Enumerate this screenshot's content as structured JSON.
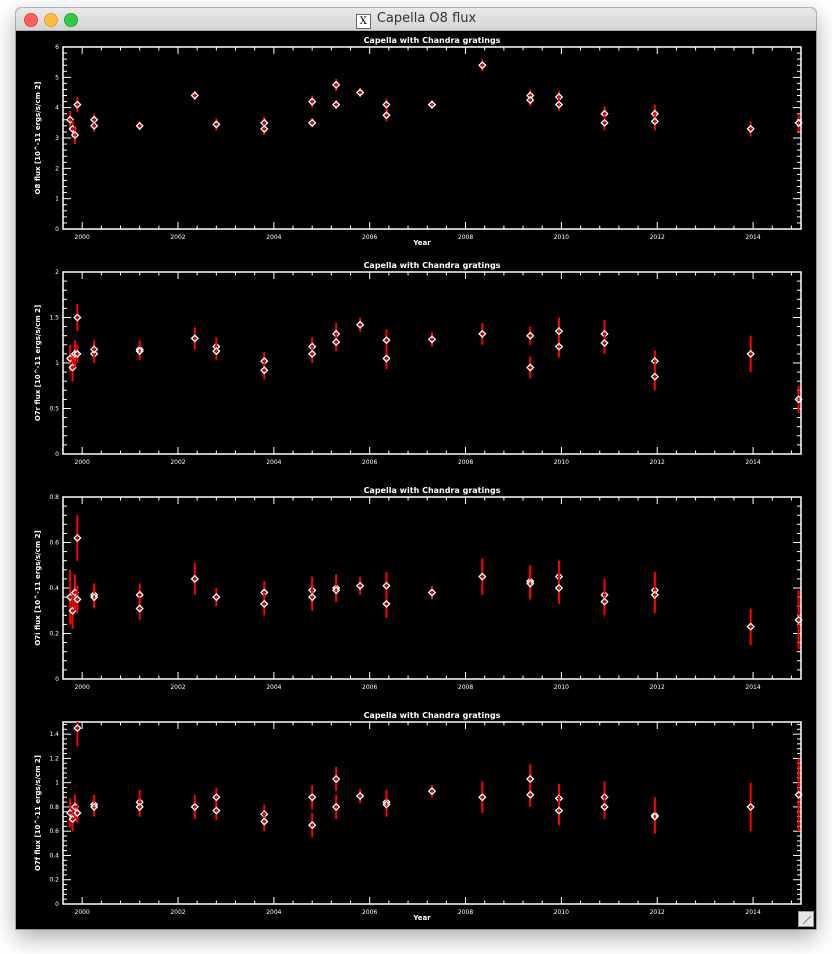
{
  "window": {
    "title": "Capella O8 flux",
    "icon": "x11-icon"
  },
  "colors": {
    "axes": "#ffffff",
    "errorbar": "#ff0000",
    "marker": "#ffffff",
    "background": "#000000"
  },
  "chart_data": [
    {
      "type": "scatter",
      "title": "Capella with Chandra gratings",
      "xlabel": "Year",
      "ylabel": "O8 flux [10^-11 ergs/s/cm 2]",
      "xlim": [
        1999.6,
        2015.0
      ],
      "ylim": [
        0,
        6
      ],
      "x_ticks": [
        2000,
        2002,
        2004,
        2006,
        2008,
        2010,
        2012,
        2014
      ],
      "x_tick_labels": [
        "2000",
        "2002",
        "2004",
        "2006",
        "2008",
        "2010",
        "2012",
        "2014"
      ],
      "y_ticks": [
        0,
        1,
        2,
        3,
        4,
        5,
        6
      ],
      "y_tick_labels": [
        "0",
        "1",
        "2",
        "3",
        "4",
        "5",
        "6"
      ],
      "points": [
        {
          "x": 1999.75,
          "y": 3.6,
          "err": 0.3
        },
        {
          "x": 1999.8,
          "y": 3.3,
          "err": 0.3
        },
        {
          "x": 1999.85,
          "y": 3.1,
          "err": 0.3
        },
        {
          "x": 1999.9,
          "y": 4.1,
          "err": 0.25
        },
        {
          "x": 2000.25,
          "y": 3.4,
          "err": 0.2
        },
        {
          "x": 2000.25,
          "y": 3.6,
          "err": 0.2
        },
        {
          "x": 2001.2,
          "y": 3.4,
          "err": 0.15
        },
        {
          "x": 2002.35,
          "y": 4.4,
          "err": 0.15
        },
        {
          "x": 2002.8,
          "y": 3.45,
          "err": 0.2
        },
        {
          "x": 2003.8,
          "y": 3.5,
          "err": 0.2
        },
        {
          "x": 2003.8,
          "y": 3.3,
          "err": 0.2
        },
        {
          "x": 2004.8,
          "y": 4.2,
          "err": 0.2
        },
        {
          "x": 2004.8,
          "y": 3.5,
          "err": 0.15
        },
        {
          "x": 2005.3,
          "y": 4.75,
          "err": 0.2
        },
        {
          "x": 2005.3,
          "y": 4.1,
          "err": 0.15
        },
        {
          "x": 2005.8,
          "y": 4.5,
          "err": 0.15
        },
        {
          "x": 2006.35,
          "y": 4.1,
          "err": 0.2
        },
        {
          "x": 2006.35,
          "y": 3.75,
          "err": 0.2
        },
        {
          "x": 2007.3,
          "y": 4.1,
          "err": 0.15
        },
        {
          "x": 2008.35,
          "y": 5.4,
          "err": 0.2
        },
        {
          "x": 2009.35,
          "y": 4.4,
          "err": 0.2
        },
        {
          "x": 2009.35,
          "y": 4.25,
          "err": 0.2
        },
        {
          "x": 2009.95,
          "y": 4.35,
          "err": 0.2
        },
        {
          "x": 2009.95,
          "y": 4.1,
          "err": 0.2
        },
        {
          "x": 2010.9,
          "y": 3.8,
          "err": 0.25
        },
        {
          "x": 2010.9,
          "y": 3.5,
          "err": 0.25
        },
        {
          "x": 2011.95,
          "y": 3.8,
          "err": 0.3
        },
        {
          "x": 2011.95,
          "y": 3.55,
          "err": 0.3
        },
        {
          "x": 2013.95,
          "y": 3.3,
          "err": 0.25
        },
        {
          "x": 2014.95,
          "y": 3.5,
          "err": 0.3
        }
      ]
    },
    {
      "type": "scatter",
      "title": "Capella with Chandra gratings",
      "xlabel": "",
      "ylabel": "O7r flux [10^-11 ergs/s/cm 2]",
      "xlim": [
        1999.6,
        2015.0
      ],
      "ylim": [
        0,
        2
      ],
      "x_ticks": [
        2000,
        2002,
        2004,
        2006,
        2008,
        2010,
        2012,
        2014
      ],
      "x_tick_labels": [
        "2000",
        "2002",
        "2004",
        "2006",
        "2008",
        "2010",
        "2012",
        "2014"
      ],
      "y_ticks": [
        0,
        0.5,
        1,
        1.5,
        2
      ],
      "y_tick_labels": [
        "0",
        "0.5",
        "1",
        "1.5",
        "2"
      ],
      "points": [
        {
          "x": 1999.75,
          "y": 1.05,
          "err": 0.15
        },
        {
          "x": 1999.8,
          "y": 0.95,
          "err": 0.15
        },
        {
          "x": 1999.85,
          "y": 1.1,
          "err": 0.15
        },
        {
          "x": 1999.9,
          "y": 1.5,
          "err": 0.15
        },
        {
          "x": 1999.9,
          "y": 1.1,
          "err": 0.1
        },
        {
          "x": 2000.25,
          "y": 1.1,
          "err": 0.1
        },
        {
          "x": 2000.25,
          "y": 1.15,
          "err": 0.1
        },
        {
          "x": 2001.2,
          "y": 1.15,
          "err": 0.1
        },
        {
          "x": 2001.2,
          "y": 1.13,
          "err": 0.1
        },
        {
          "x": 2002.35,
          "y": 1.27,
          "err": 0.12
        },
        {
          "x": 2002.8,
          "y": 1.18,
          "err": 0.1
        },
        {
          "x": 2002.8,
          "y": 1.13,
          "err": 0.1
        },
        {
          "x": 2003.8,
          "y": 1.02,
          "err": 0.1
        },
        {
          "x": 2003.8,
          "y": 0.92,
          "err": 0.1
        },
        {
          "x": 2004.8,
          "y": 1.18,
          "err": 0.1
        },
        {
          "x": 2004.8,
          "y": 1.1,
          "err": 0.1
        },
        {
          "x": 2005.3,
          "y": 1.32,
          "err": 0.12
        },
        {
          "x": 2005.3,
          "y": 1.23,
          "err": 0.1
        },
        {
          "x": 2005.8,
          "y": 1.42,
          "err": 0.08
        },
        {
          "x": 2006.35,
          "y": 1.25,
          "err": 0.12
        },
        {
          "x": 2006.35,
          "y": 1.05,
          "err": 0.12
        },
        {
          "x": 2007.3,
          "y": 1.26,
          "err": 0.08
        },
        {
          "x": 2008.35,
          "y": 1.32,
          "err": 0.12
        },
        {
          "x": 2009.35,
          "y": 1.3,
          "err": 0.1
        },
        {
          "x": 2009.35,
          "y": 0.95,
          "err": 0.12
        },
        {
          "x": 2009.95,
          "y": 1.35,
          "err": 0.15
        },
        {
          "x": 2009.95,
          "y": 1.18,
          "err": 0.12
        },
        {
          "x": 2010.9,
          "y": 1.32,
          "err": 0.15
        },
        {
          "x": 2010.9,
          "y": 1.22,
          "err": 0.12
        },
        {
          "x": 2011.95,
          "y": 1.02,
          "err": 0.12
        },
        {
          "x": 2011.95,
          "y": 0.85,
          "err": 0.15
        },
        {
          "x": 2013.95,
          "y": 1.1,
          "err": 0.2
        },
        {
          "x": 2014.95,
          "y": 0.6,
          "err": 0.15
        }
      ]
    },
    {
      "type": "scatter",
      "title": "Capella with Chandra gratings",
      "xlabel": "",
      "ylabel": "O7i flux [10^-11 ergs/s/cm 2]",
      "xlim": [
        1999.6,
        2015.0
      ],
      "ylim": [
        0,
        0.8
      ],
      "x_ticks": [
        2000,
        2002,
        2004,
        2006,
        2008,
        2010,
        2012,
        2014
      ],
      "x_tick_labels": [
        "2000",
        "2002",
        "2004",
        "2006",
        "2008",
        "2010",
        "2012",
        "2014"
      ],
      "y_ticks": [
        0,
        0.2,
        0.4,
        0.6,
        0.8
      ],
      "y_tick_labels": [
        "0",
        "0.2",
        "0.4",
        "0.6",
        "0.8"
      ],
      "points": [
        {
          "x": 1999.75,
          "y": 0.36,
          "err": 0.12
        },
        {
          "x": 1999.8,
          "y": 0.3,
          "err": 0.08
        },
        {
          "x": 1999.85,
          "y": 0.38,
          "err": 0.08
        },
        {
          "x": 1999.9,
          "y": 0.62,
          "err": 0.1
        },
        {
          "x": 1999.9,
          "y": 0.35,
          "err": 0.06
        },
        {
          "x": 2000.25,
          "y": 0.37,
          "err": 0.05
        },
        {
          "x": 2000.25,
          "y": 0.36,
          "err": 0.05
        },
        {
          "x": 2001.2,
          "y": 0.37,
          "err": 0.05
        },
        {
          "x": 2001.2,
          "y": 0.31,
          "err": 0.05
        },
        {
          "x": 2002.35,
          "y": 0.44,
          "err": 0.07
        },
        {
          "x": 2002.8,
          "y": 0.36,
          "err": 0.04
        },
        {
          "x": 2003.8,
          "y": 0.38,
          "err": 0.05
        },
        {
          "x": 2003.8,
          "y": 0.33,
          "err": 0.05
        },
        {
          "x": 2004.8,
          "y": 0.39,
          "err": 0.06
        },
        {
          "x": 2004.8,
          "y": 0.36,
          "err": 0.06
        },
        {
          "x": 2005.3,
          "y": 0.4,
          "err": 0.06
        },
        {
          "x": 2005.3,
          "y": 0.39,
          "err": 0.05
        },
        {
          "x": 2005.8,
          "y": 0.41,
          "err": 0.04
        },
        {
          "x": 2006.35,
          "y": 0.41,
          "err": 0.06
        },
        {
          "x": 2006.35,
          "y": 0.33,
          "err": 0.06
        },
        {
          "x": 2007.3,
          "y": 0.38,
          "err": 0.03
        },
        {
          "x": 2008.35,
          "y": 0.45,
          "err": 0.08
        },
        {
          "x": 2009.35,
          "y": 0.43,
          "err": 0.07
        },
        {
          "x": 2009.35,
          "y": 0.42,
          "err": 0.07
        },
        {
          "x": 2009.95,
          "y": 0.45,
          "err": 0.07
        },
        {
          "x": 2009.95,
          "y": 0.4,
          "err": 0.07
        },
        {
          "x": 2010.9,
          "y": 0.37,
          "err": 0.07
        },
        {
          "x": 2010.9,
          "y": 0.34,
          "err": 0.06
        },
        {
          "x": 2011.95,
          "y": 0.39,
          "err": 0.08
        },
        {
          "x": 2011.95,
          "y": 0.37,
          "err": 0.08
        },
        {
          "x": 2013.95,
          "y": 0.23,
          "err": 0.08
        },
        {
          "x": 2014.95,
          "y": 0.26,
          "err": 0.13
        }
      ]
    },
    {
      "type": "scatter",
      "title": "Capella with Chandra gratings",
      "xlabel": "Year",
      "ylabel": "O7f flux [10^-11 ergs/s/cm 2]",
      "xlim": [
        1999.6,
        2015.0
      ],
      "ylim": [
        0,
        1.5
      ],
      "x_ticks": [
        2000,
        2002,
        2004,
        2006,
        2008,
        2010,
        2012,
        2014
      ],
      "x_tick_labels": [
        "2000",
        "2002",
        "2004",
        "2006",
        "2008",
        "2010",
        "2012",
        "2014"
      ],
      "y_ticks": [
        0,
        0.2,
        0.4,
        0.6,
        0.8,
        1,
        1.2,
        1.4
      ],
      "y_tick_labels": [
        "0",
        "0.2",
        "0.4",
        "0.6",
        "0.8",
        "1",
        "1.2",
        "1.4"
      ],
      "points": [
        {
          "x": 1999.75,
          "y": 0.75,
          "err": 0.12
        },
        {
          "x": 1999.8,
          "y": 0.7,
          "err": 0.1
        },
        {
          "x": 1999.85,
          "y": 0.8,
          "err": 0.1
        },
        {
          "x": 1999.9,
          "y": 1.45,
          "err": 0.15
        },
        {
          "x": 1999.9,
          "y": 0.75,
          "err": 0.08
        },
        {
          "x": 2000.25,
          "y": 0.82,
          "err": 0.08
        },
        {
          "x": 2000.25,
          "y": 0.8,
          "err": 0.08
        },
        {
          "x": 2001.2,
          "y": 0.84,
          "err": 0.1
        },
        {
          "x": 2001.2,
          "y": 0.8,
          "err": 0.08
        },
        {
          "x": 2002.35,
          "y": 0.8,
          "err": 0.1
        },
        {
          "x": 2002.8,
          "y": 0.88,
          "err": 0.08
        },
        {
          "x": 2002.8,
          "y": 0.77,
          "err": 0.08
        },
        {
          "x": 2003.8,
          "y": 0.74,
          "err": 0.08
        },
        {
          "x": 2003.8,
          "y": 0.68,
          "err": 0.08
        },
        {
          "x": 2004.8,
          "y": 0.88,
          "err": 0.1
        },
        {
          "x": 2004.8,
          "y": 0.65,
          "err": 0.1
        },
        {
          "x": 2005.3,
          "y": 1.03,
          "err": 0.1
        },
        {
          "x": 2005.3,
          "y": 0.8,
          "err": 0.1
        },
        {
          "x": 2005.8,
          "y": 0.89,
          "err": 0.06
        },
        {
          "x": 2006.35,
          "y": 0.84,
          "err": 0.1
        },
        {
          "x": 2006.35,
          "y": 0.82,
          "err": 0.1
        },
        {
          "x": 2007.3,
          "y": 0.93,
          "err": 0.05
        },
        {
          "x": 2008.35,
          "y": 0.88,
          "err": 0.13
        },
        {
          "x": 2009.35,
          "y": 1.03,
          "err": 0.12
        },
        {
          "x": 2009.35,
          "y": 0.9,
          "err": 0.1
        },
        {
          "x": 2009.95,
          "y": 0.87,
          "err": 0.12
        },
        {
          "x": 2009.95,
          "y": 0.77,
          "err": 0.12
        },
        {
          "x": 2010.9,
          "y": 0.88,
          "err": 0.13
        },
        {
          "x": 2010.9,
          "y": 0.8,
          "err": 0.1
        },
        {
          "x": 2011.95,
          "y": 0.73,
          "err": 0.15
        },
        {
          "x": 2011.95,
          "y": 0.72,
          "err": 0.12
        },
        {
          "x": 2013.95,
          "y": 0.8,
          "err": 0.2
        },
        {
          "x": 2014.95,
          "y": 0.9,
          "err": 0.3
        }
      ]
    }
  ]
}
